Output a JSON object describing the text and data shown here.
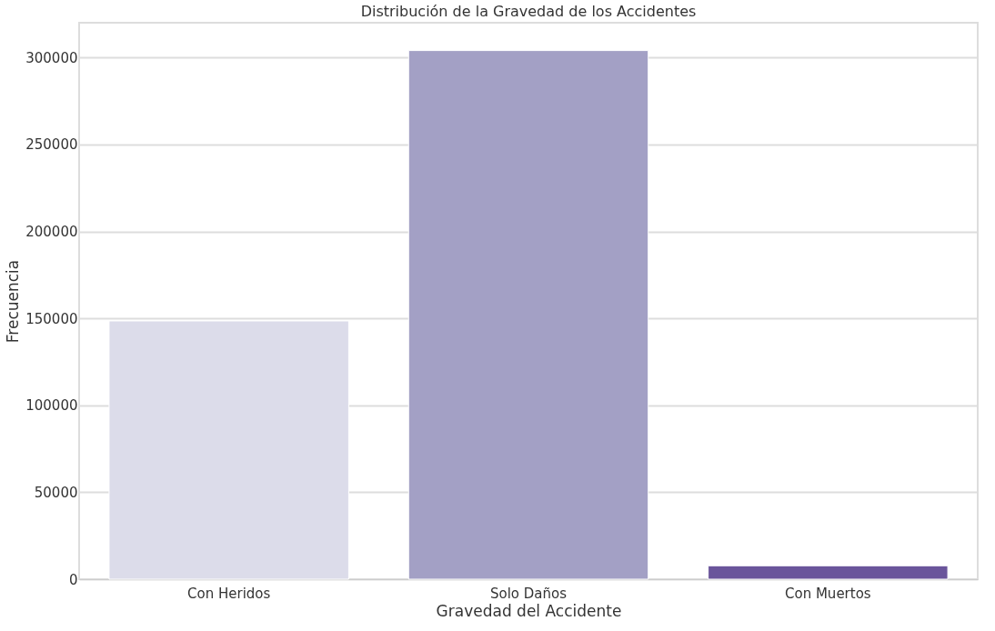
{
  "chart_data": {
    "type": "bar",
    "title": "Distribución de la Gravedad de los Accidentes",
    "xlabel": "Gravedad del Accidente",
    "ylabel": "Frecuencia",
    "categories": [
      "Con Heridos",
      "Solo Daños",
      "Con Muertos"
    ],
    "values": [
      148500,
      304000,
      7700
    ],
    "colors": [
      "#dcdcea",
      "#a3a0c5",
      "#6a559b"
    ],
    "ylim": [
      0,
      320000
    ],
    "yticks": [
      0,
      50000,
      100000,
      150000,
      200000,
      250000,
      300000
    ],
    "grid": "y"
  }
}
